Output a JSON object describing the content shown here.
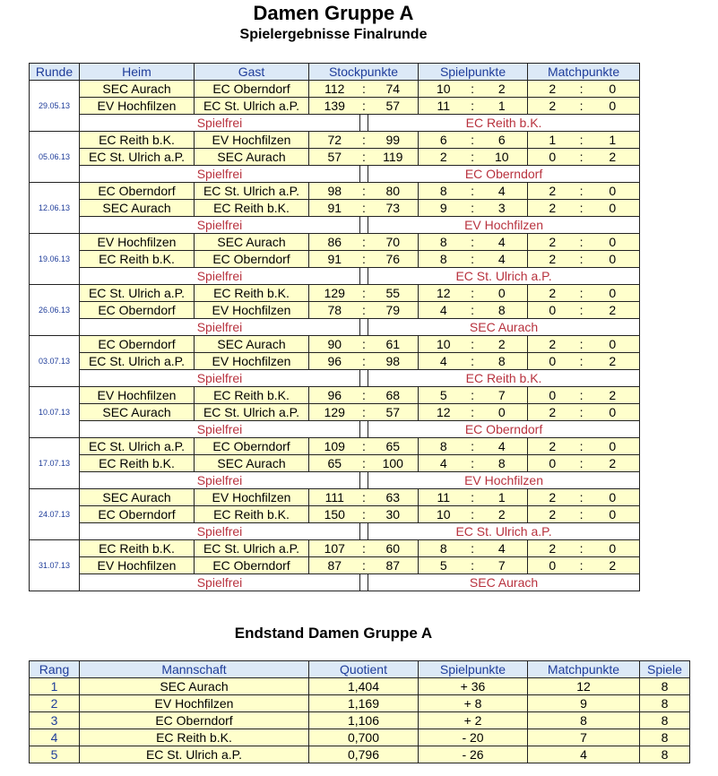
{
  "header": {
    "title": "Damen Gruppe A",
    "subtitle": "Spielergebnisse Finalrunde"
  },
  "results": {
    "columns": [
      "Runde",
      "Heim",
      "Gast",
      "Stockpunkte",
      "Spielpunkte",
      "Matchpunkte"
    ],
    "separator": ":",
    "free_label": "Spielfrei",
    "rounds": [
      {
        "date": "29.05.13",
        "games": [
          [
            "SEC Aurach",
            "EC Oberndorf",
            112,
            74,
            10,
            2,
            2,
            0
          ],
          [
            "EV Hochfilzen",
            "EC St. Ulrich a.P.",
            139,
            57,
            11,
            1,
            2,
            0
          ]
        ],
        "free": "EC Reith b.K."
      },
      {
        "date": "05.06.13",
        "games": [
          [
            "EC Reith b.K.",
            "EV Hochfilzen",
            72,
            99,
            6,
            6,
            1,
            1
          ],
          [
            "EC St. Ulrich a.P.",
            "SEC Aurach",
            57,
            119,
            2,
            10,
            0,
            2
          ]
        ],
        "free": "EC Oberndorf"
      },
      {
        "date": "12.06.13",
        "games": [
          [
            "EC Oberndorf",
            "EC St. Ulrich a.P.",
            98,
            80,
            8,
            4,
            2,
            0
          ],
          [
            "SEC Aurach",
            "EC Reith b.K.",
            91,
            73,
            9,
            3,
            2,
            0
          ]
        ],
        "free": "EV Hochfilzen"
      },
      {
        "date": "19.06.13",
        "games": [
          [
            "EV Hochfilzen",
            "SEC Aurach",
            86,
            70,
            8,
            4,
            2,
            0
          ],
          [
            "EC Reith b.K.",
            "EC Oberndorf",
            91,
            76,
            8,
            4,
            2,
            0
          ]
        ],
        "free": "EC St. Ulrich a.P."
      },
      {
        "date": "26.06.13",
        "games": [
          [
            "EC St. Ulrich a.P.",
            "EC Reith b.K.",
            129,
            55,
            12,
            0,
            2,
            0
          ],
          [
            "EC Oberndorf",
            "EV Hochfilzen",
            78,
            79,
            4,
            8,
            0,
            2
          ]
        ],
        "free": "SEC Aurach"
      },
      {
        "date": "03.07.13",
        "games": [
          [
            "EC Oberndorf",
            "SEC Aurach",
            90,
            61,
            10,
            2,
            2,
            0
          ],
          [
            "EC St. Ulrich a.P.",
            "EV Hochfilzen",
            96,
            98,
            4,
            8,
            0,
            2
          ]
        ],
        "free": "EC Reith b.K."
      },
      {
        "date": "10.07.13",
        "games": [
          [
            "EV Hochfilzen",
            "EC Reith b.K.",
            96,
            68,
            5,
            7,
            0,
            2
          ],
          [
            "SEC Aurach",
            "EC St. Ulrich a.P.",
            129,
            57,
            12,
            0,
            2,
            0
          ]
        ],
        "free": "EC Oberndorf"
      },
      {
        "date": "17.07.13",
        "games": [
          [
            "EC St. Ulrich a.P.",
            "EC Oberndorf",
            109,
            65,
            8,
            4,
            2,
            0
          ],
          [
            "EC Reith b.K.",
            "SEC Aurach",
            65,
            100,
            4,
            8,
            0,
            2
          ]
        ],
        "free": "EV Hochfilzen"
      },
      {
        "date": "24.07.13",
        "games": [
          [
            "SEC Aurach",
            "EV Hochfilzen",
            111,
            63,
            11,
            1,
            2,
            0
          ],
          [
            "EC Oberndorf",
            "EC Reith b.K.",
            150,
            30,
            10,
            2,
            2,
            0
          ]
        ],
        "free": "EC St. Ulrich a.P."
      },
      {
        "date": "31.07.13",
        "games": [
          [
            "EC Reith b.K.",
            "EC St. Ulrich a.P.",
            107,
            60,
            8,
            4,
            2,
            0
          ],
          [
            "EV Hochfilzen",
            "EC Oberndorf",
            87,
            87,
            5,
            7,
            0,
            2
          ]
        ],
        "free": "SEC Aurach"
      }
    ]
  },
  "standings": {
    "title": "Endstand Damen Gruppe A",
    "columns": [
      "Rang",
      "Mannschaft",
      "Quotient",
      "Spielpunkte",
      "Matchpunkte",
      "Spiele"
    ],
    "rows": [
      [
        1,
        "SEC Aurach",
        "1,404",
        "+ 36",
        12,
        8
      ],
      [
        2,
        "EV Hochfilzen",
        "1,169",
        "+ 8",
        9,
        8
      ],
      [
        3,
        "EC Oberndorf",
        "1,106",
        "+ 2",
        8,
        8
      ],
      [
        4,
        "EC Reith b.K.",
        "0,700",
        "- 20",
        7,
        8
      ],
      [
        5,
        "EC St. Ulrich a.P.",
        "0,796",
        "- 26",
        4,
        8
      ]
    ]
  }
}
